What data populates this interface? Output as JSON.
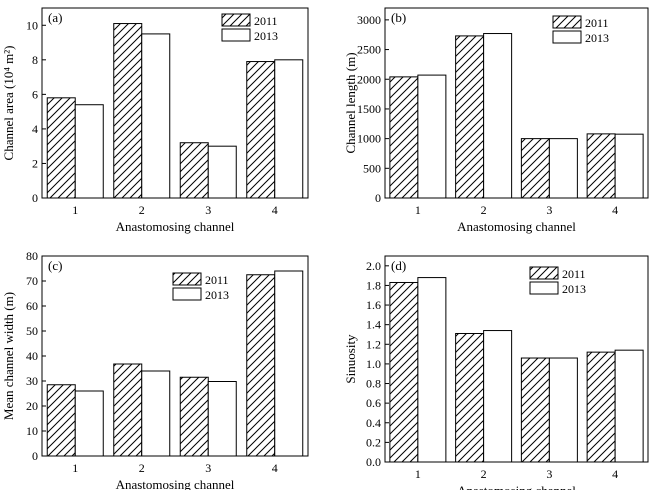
{
  "chart_data": [
    {
      "type": "bar",
      "panel_label": "(a)",
      "categories": [
        "1",
        "2",
        "3",
        "4"
      ],
      "series": [
        {
          "name": "2011",
          "values": [
            5.8,
            10.1,
            3.2,
            7.9
          ]
        },
        {
          "name": "2013",
          "values": [
            5.4,
            9.5,
            3.0,
            8.0
          ]
        }
      ],
      "xlabel": "Anastomosing channel",
      "ylabel": "Channel area (10⁴ m²)",
      "ylim": [
        0,
        11
      ],
      "yticks": [
        "0",
        "2",
        "4",
        "6",
        "8",
        "10"
      ],
      "grid": false,
      "legend": "top-right"
    },
    {
      "type": "bar",
      "panel_label": "(b)",
      "categories": [
        "1",
        "2",
        "3",
        "4"
      ],
      "series": [
        {
          "name": "2011",
          "values": [
            2040,
            2730,
            1000,
            1080
          ]
        },
        {
          "name": "2013",
          "values": [
            2070,
            2770,
            1000,
            1075
          ]
        }
      ],
      "xlabel": "Anastomosing channel",
      "ylabel": "Channel length (m)",
      "ylim": [
        0,
        3200
      ],
      "yticks": [
        "0",
        "500",
        "1000",
        "1500",
        "2000",
        "2500",
        "3000"
      ],
      "grid": false,
      "legend": "top-right"
    },
    {
      "type": "bar",
      "panel_label": "(c)",
      "categories": [
        "1",
        "2",
        "3",
        "4"
      ],
      "series": [
        {
          "name": "2011",
          "values": [
            28.5,
            36.8,
            31.5,
            72.5
          ]
        },
        {
          "name": "2013",
          "values": [
            26.0,
            34.0,
            29.8,
            74.0
          ]
        }
      ],
      "xlabel": "Anastomosing channel",
      "ylabel": "Mean channel width (m)",
      "ylim": [
        0,
        80
      ],
      "yticks": [
        "0",
        "10",
        "20",
        "30",
        "40",
        "50",
        "60",
        "70",
        "80"
      ],
      "grid": false,
      "legend": "top-right"
    },
    {
      "type": "bar",
      "panel_label": "(d)",
      "categories": [
        "1",
        "2",
        "3",
        "4"
      ],
      "series": [
        {
          "name": "2011",
          "values": [
            1.83,
            1.31,
            1.06,
            1.12
          ]
        },
        {
          "name": "2013",
          "values": [
            1.88,
            1.34,
            1.06,
            1.14
          ]
        }
      ],
      "xlabel": "Anastomosing channel",
      "ylabel": "Sinuosity",
      "ylim": [
        0,
        2.1
      ],
      "yticks": [
        "0.0",
        "0.2",
        "0.4",
        "0.6",
        "0.8",
        "1.0",
        "1.2",
        "1.4",
        "1.6",
        "1.8",
        "2.0"
      ],
      "grid": false,
      "legend": "top-right"
    }
  ],
  "colors": {
    "bar_stroke": "#000000",
    "bar_fill_2013": "#ffffff",
    "hatch": "#000000"
  }
}
